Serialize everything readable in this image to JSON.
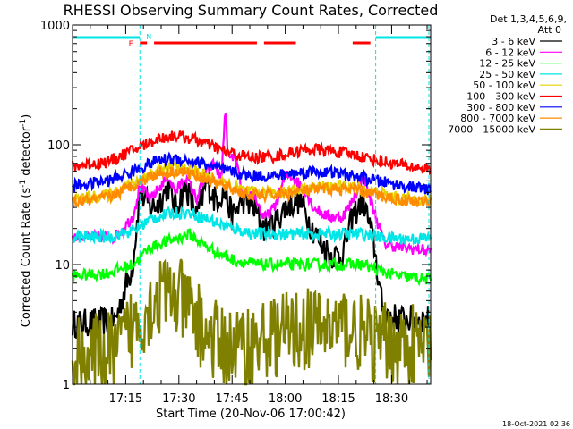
{
  "chart_data": {
    "type": "line",
    "title": "RHESSI Observing Summary Count Rates, Corrected",
    "xlabel": "Start Time (20-Nov-06 17:00:42)",
    "ylabel_main": "Corrected Count Rate (s",
    "ylabel_sup1": "-1",
    "ylabel_mid": " detector",
    "ylabel_sup2": "-1",
    "ylabel_end": ")",
    "y_scale": "log",
    "ylim": [
      1,
      1000
    ],
    "xlim_minutes": [
      0,
      101
    ],
    "x_ticks": [
      {
        "t": 15,
        "label": "17:15"
      },
      {
        "t": 30,
        "label": "17:30"
      },
      {
        "t": 45,
        "label": "17:45"
      },
      {
        "t": 60,
        "label": "18:00"
      },
      {
        "t": 75,
        "label": "18:15"
      },
      {
        "t": 90,
        "label": "18:30"
      }
    ],
    "y_ticks": [
      {
        "v": 1,
        "label": "1"
      },
      {
        "v": 10,
        "label": "10"
      },
      {
        "v": 100,
        "label": "100"
      },
      {
        "v": 1000,
        "label": "1000"
      }
    ],
    "legend_header": [
      "Det 1,3,4,5,6,9,",
      "Att 0"
    ],
    "legend_position": "top-right-outside",
    "footer_date": "18-Oct-2021 02:36",
    "flags": {
      "flag_label": "F",
      "night_label": "N",
      "night_color": "#00e5e5",
      "flare_color": "#ff0000",
      "night_intervals": [
        [
          0,
          19
        ],
        [
          85.5,
          101
        ]
      ],
      "flare_intervals": [
        [
          19,
          21
        ],
        [
          23,
          52
        ],
        [
          54,
          63
        ],
        [
          79,
          84
        ]
      ],
      "vlines": [
        19,
        85.5,
        100.5
      ]
    },
    "series": [
      {
        "name": "3 - 6 keV",
        "color": "#000000",
        "points": [
          [
            0,
            3.2
          ],
          [
            12,
            3.4
          ],
          [
            17,
            10
          ],
          [
            19,
            40
          ],
          [
            22,
            30
          ],
          [
            24,
            32
          ],
          [
            27,
            45
          ],
          [
            29,
            30
          ],
          [
            32,
            45
          ],
          [
            35,
            25
          ],
          [
            38,
            50
          ],
          [
            40,
            35
          ],
          [
            43,
            40
          ],
          [
            45,
            25
          ],
          [
            48,
            35
          ],
          [
            51,
            30
          ],
          [
            54,
            20
          ],
          [
            57,
            22
          ],
          [
            60,
            30
          ],
          [
            64,
            35
          ],
          [
            67,
            22
          ],
          [
            70,
            15
          ],
          [
            73,
            12
          ],
          [
            76,
            12
          ],
          [
            79,
            25
          ],
          [
            82,
            35
          ],
          [
            85,
            15
          ],
          [
            87,
            5
          ],
          [
            88,
            4
          ],
          [
            92,
            3.5
          ],
          [
            101,
            3.5
          ]
        ]
      },
      {
        "name": "6 - 12 keV",
        "color": "#ff00ff",
        "points": [
          [
            0,
            17
          ],
          [
            12,
            17
          ],
          [
            17,
            25
          ],
          [
            19,
            45
          ],
          [
            22,
            35
          ],
          [
            27,
            55
          ],
          [
            29,
            40
          ],
          [
            32,
            55
          ],
          [
            35,
            35
          ],
          [
            38,
            60
          ],
          [
            40,
            70
          ],
          [
            42,
            50
          ],
          [
            43,
            200
          ],
          [
            44,
            75
          ],
          [
            46,
            80
          ],
          [
            48,
            35
          ],
          [
            51,
            40
          ],
          [
            54,
            24
          ],
          [
            57,
            30
          ],
          [
            60,
            55
          ],
          [
            62,
            55
          ],
          [
            66,
            40
          ],
          [
            68,
            30
          ],
          [
            72,
            25
          ],
          [
            76,
            25
          ],
          [
            78,
            30
          ],
          [
            82,
            55
          ],
          [
            85,
            28
          ],
          [
            88,
            15
          ],
          [
            92,
            14
          ],
          [
            101,
            13
          ]
        ]
      },
      {
        "name": "12 - 25 keV",
        "color": "#00ff00",
        "points": [
          [
            0,
            8
          ],
          [
            10,
            8.5
          ],
          [
            17,
            10
          ],
          [
            22,
            14
          ],
          [
            28,
            16
          ],
          [
            33,
            18
          ],
          [
            38,
            14
          ],
          [
            45,
            11
          ],
          [
            52,
            10
          ],
          [
            60,
            10
          ],
          [
            68,
            10
          ],
          [
            76,
            10
          ],
          [
            82,
            10
          ],
          [
            86,
            9
          ],
          [
            92,
            8
          ],
          [
            101,
            7.5
          ]
        ]
      },
      {
        "name": "25 - 50 keV",
        "color": "#00e5e5",
        "points": [
          [
            0,
            17
          ],
          [
            10,
            17
          ],
          [
            17,
            19
          ],
          [
            22,
            24
          ],
          [
            28,
            27
          ],
          [
            33,
            27
          ],
          [
            38,
            24
          ],
          [
            45,
            20
          ],
          [
            52,
            18
          ],
          [
            60,
            18
          ],
          [
            68,
            18
          ],
          [
            76,
            18
          ],
          [
            82,
            18
          ],
          [
            86,
            17
          ],
          [
            92,
            16.5
          ],
          [
            101,
            16.5
          ]
        ]
      },
      {
        "name": "50 - 100 keV",
        "color": "#e5d000",
        "points": [
          [
            0,
            35
          ],
          [
            10,
            38
          ],
          [
            17,
            48
          ],
          [
            24,
            62
          ],
          [
            30,
            65
          ],
          [
            35,
            60
          ],
          [
            42,
            48
          ],
          [
            50,
            40
          ],
          [
            56,
            40
          ],
          [
            62,
            42
          ],
          [
            68,
            44
          ],
          [
            74,
            45
          ],
          [
            80,
            44
          ],
          [
            86,
            40
          ],
          [
            92,
            36
          ],
          [
            101,
            34
          ]
        ]
      },
      {
        "name": "100 - 300 keV",
        "color": "#ff0000",
        "points": [
          [
            0,
            66
          ],
          [
            10,
            72
          ],
          [
            17,
            90
          ],
          [
            24,
            112
          ],
          [
            29,
            120
          ],
          [
            35,
            110
          ],
          [
            42,
            90
          ],
          [
            50,
            78
          ],
          [
            57,
            80
          ],
          [
            63,
            88
          ],
          [
            68,
            92
          ],
          [
            74,
            88
          ],
          [
            80,
            82
          ],
          [
            86,
            74
          ],
          [
            92,
            68
          ],
          [
            101,
            62
          ]
        ]
      },
      {
        "name": "300 - 800 keV",
        "color": "#0000ff",
        "points": [
          [
            0,
            45
          ],
          [
            10,
            50
          ],
          [
            17,
            60
          ],
          [
            24,
            74
          ],
          [
            29,
            77
          ],
          [
            35,
            72
          ],
          [
            42,
            62
          ],
          [
            50,
            55
          ],
          [
            57,
            55
          ],
          [
            63,
            58
          ],
          [
            68,
            60
          ],
          [
            74,
            58
          ],
          [
            80,
            54
          ],
          [
            86,
            50
          ],
          [
            92,
            46
          ],
          [
            101,
            42
          ]
        ]
      },
      {
        "name": "800 - 7000 keV",
        "color": "#ff8c00",
        "points": [
          [
            0,
            33
          ],
          [
            10,
            36
          ],
          [
            17,
            46
          ],
          [
            24,
            58
          ],
          [
            30,
            60
          ],
          [
            35,
            56
          ],
          [
            42,
            46
          ],
          [
            50,
            38
          ],
          [
            56,
            38
          ],
          [
            62,
            40
          ],
          [
            68,
            42
          ],
          [
            74,
            43
          ],
          [
            80,
            42
          ],
          [
            86,
            38
          ],
          [
            92,
            35
          ],
          [
            101,
            33
          ]
        ]
      },
      {
        "name": "7000 - 15000 keV",
        "color": "#808000",
        "points": [
          [
            0,
            1.7
          ],
          [
            12,
            1.8
          ],
          [
            17,
            3.0
          ],
          [
            22,
            4.6
          ],
          [
            25,
            5.6
          ],
          [
            30,
            5.2
          ],
          [
            34,
            3.8
          ],
          [
            38,
            2.5
          ],
          [
            44,
            2.0
          ],
          [
            50,
            2.1
          ],
          [
            56,
            2.5
          ],
          [
            62,
            2.8
          ],
          [
            70,
            3.0
          ],
          [
            78,
            3.0
          ],
          [
            85,
            2.2
          ],
          [
            92,
            2.2
          ],
          [
            101,
            2.0
          ]
        ]
      }
    ]
  }
}
